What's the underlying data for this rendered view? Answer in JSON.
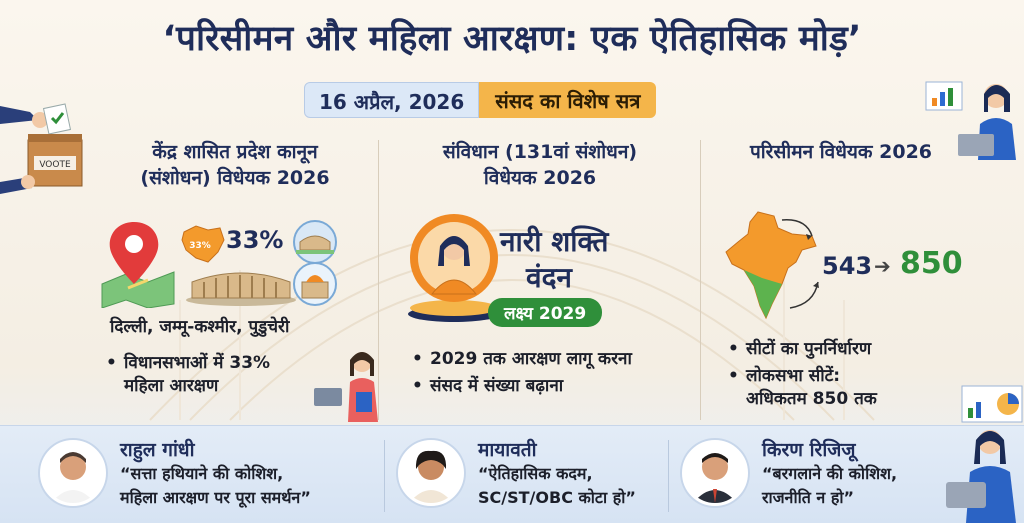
{
  "title": "‘परिसीमन और महिला आरक्षण: एक ऐतिहासिक मोड़’",
  "date": "16 अप्रैल, 2026",
  "session": "संसद का विशेष सत्र",
  "col1": {
    "title_line1": "केंद्र शासित प्रदेश कानून",
    "title_line2": "(संशोधन) विधेयक 2026",
    "percent": "33%",
    "map_label": "33%",
    "regions": "दिल्ली, जम्मू-कश्मीर, पुडुचेरी",
    "bullets": [
      "विधानसभाओं में 33%",
      "महिला आरक्षण"
    ]
  },
  "col2": {
    "title_line1": "संविधान (131वां संशोधन)",
    "title_line2": "विधेयक 2026",
    "badge_line1": "नारी शक्ति",
    "badge_line2": "वंदन",
    "target": "लक्ष्य 2029",
    "bullets": [
      "2029 तक आरक्षण लागू करना",
      "संसद में संख्या बढ़ाना"
    ]
  },
  "col3": {
    "title": "परिसीमन विधेयक 2026",
    "from_seats": "543",
    "to_seats": "850",
    "bullets": [
      "सीटों का पुनर्निर्धारण",
      "लोकसभा सीटें:",
      "अधिकतम 850 तक"
    ]
  },
  "vote_box_label": "VOOTE",
  "people": [
    {
      "name": "राहुल गांधी",
      "quote1": "“सत्ता हथियाने की कोशिश,",
      "quote2": "महिला आरक्षण पर पूरा समर्थन”"
    },
    {
      "name": "मायावती",
      "quote1": "“ऐतिहासिक कदम,",
      "quote2": "SC/ST/OBC कोटा हो”"
    },
    {
      "name": "किरण रिजिजू",
      "quote1": "“बरगलाने की कोशिश,",
      "quote2": "राजनीति न हो”"
    }
  ],
  "colors": {
    "navy": "#1f2d5a",
    "orange": "#f4b54a",
    "green": "#2f8f3a",
    "saffron": "#f08a24"
  }
}
